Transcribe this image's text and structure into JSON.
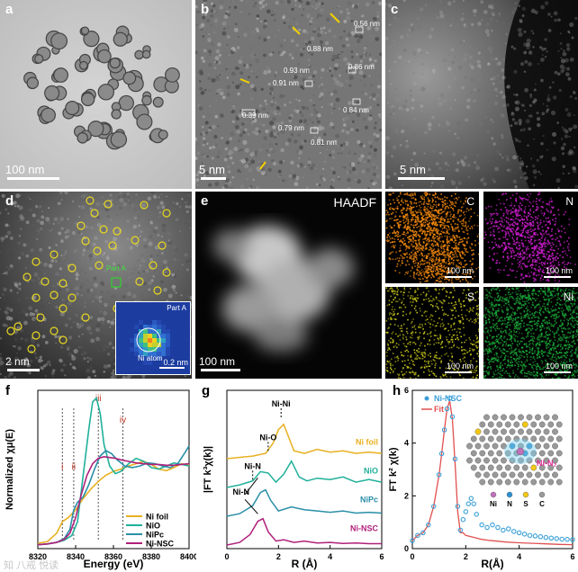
{
  "panels": {
    "a": {
      "label": "a",
      "scale": "100 nm"
    },
    "b": {
      "label": "b",
      "scale": "5 nm",
      "measurements": [
        "0.56 nm",
        "0.88 nm",
        "0.93 nm",
        "0.91 nm",
        "0.86 nm",
        "0.39 nm",
        "0.84 nm",
        "0.79 nm",
        "0.81 nm"
      ]
    },
    "c": {
      "label": "c",
      "scale": "5 nm"
    },
    "d": {
      "label": "d",
      "scale": "2 nm",
      "part_label": "Part A",
      "inset_title": "Part A",
      "inset_atom": "Ni atom",
      "inset_scale": "0.2 nm"
    },
    "e": {
      "label": "e",
      "title": "HAADF",
      "scale": "100 nm"
    },
    "maps": [
      {
        "element": "C",
        "scale": "100 nm",
        "color": "#f58a0c"
      },
      {
        "element": "N",
        "scale": "100 nm",
        "color": "#d21ed2"
      },
      {
        "element": "S",
        "scale": "100 nm",
        "color": "#c8c81a"
      },
      {
        "element": "Ni",
        "scale": "100 nm",
        "color": "#1aa838"
      }
    ],
    "f": {
      "label": "f"
    },
    "g": {
      "label": "g"
    },
    "h": {
      "label": "h"
    }
  },
  "watermark": "知 八戒 悦读",
  "chart_data": [
    {
      "type": "line",
      "panel": "f",
      "xlabel": "Energy (eV)",
      "ylabel": "Normalized χμ(E)",
      "xlim": [
        8320,
        8400
      ],
      "xticks": [
        8320,
        8340,
        8360,
        8380,
        8400
      ],
      "markers": [
        {
          "label": "i",
          "x": 8333
        },
        {
          "label": "ii",
          "x": 8339
        },
        {
          "label": "iii",
          "x": 8352
        },
        {
          "label": "iv",
          "x": 8365
        }
      ],
      "legend": "bottom-right",
      "series": [
        {
          "name": "Ni foil",
          "color": "#e8b020",
          "x": [
            8320,
            8325,
            8330,
            8333,
            8336,
            8340,
            8344,
            8348,
            8352,
            8356,
            8360,
            8364,
            8368,
            8372,
            8376,
            8380,
            8384,
            8388,
            8392,
            8396,
            8400
          ],
          "y": [
            0.02,
            0.04,
            0.15,
            0.3,
            0.35,
            0.45,
            0.6,
            0.72,
            0.82,
            0.9,
            0.95,
            0.98,
            1.02,
            1.05,
            1.08,
            1.04,
            0.98,
            0.96,
            1.0,
            1.05,
            1.03
          ]
        },
        {
          "name": "NiO",
          "color": "#20b09a",
          "x": [
            8320,
            8325,
            8330,
            8334,
            8338,
            8341,
            8344,
            8347,
            8349,
            8351,
            8353,
            8355,
            8358,
            8361,
            8364,
            8368,
            8372,
            8376,
            8380,
            8384,
            8388,
            8392,
            8396,
            8400
          ],
          "y": [
            0.0,
            0.01,
            0.03,
            0.06,
            0.12,
            0.3,
            0.9,
            1.5,
            1.85,
            1.9,
            1.7,
            1.3,
            1.02,
            0.92,
            0.95,
            1.05,
            1.12,
            1.08,
            1.0,
            0.98,
            1.02,
            1.06,
            1.04,
            1.02
          ]
        },
        {
          "name": "NiPc",
          "color": "#2a8fa8",
          "x": [
            8320,
            8325,
            8330,
            8334,
            8337,
            8339,
            8341,
            8344,
            8347,
            8350,
            8353,
            8356,
            8359,
            8362,
            8366,
            8370,
            8374,
            8378,
            8382,
            8386,
            8390,
            8394,
            8398,
            8400
          ],
          "y": [
            0.0,
            0.01,
            0.03,
            0.08,
            0.2,
            0.45,
            0.55,
            0.62,
            0.78,
            0.98,
            1.15,
            1.22,
            1.18,
            1.1,
            1.02,
            1.0,
            1.02,
            1.06,
            1.05,
            1.02,
            1.0,
            1.05,
            1.2,
            1.28
          ]
        },
        {
          "name": "Ni-NSC",
          "color": "#b0207a",
          "x": [
            8320,
            8325,
            8330,
            8334,
            8337,
            8340,
            8343,
            8346,
            8349,
            8352,
            8355,
            8358,
            8361,
            8364,
            8368,
            8372,
            8376,
            8380,
            8384,
            8388,
            8392,
            8396,
            8400
          ],
          "y": [
            0.0,
            0.01,
            0.03,
            0.07,
            0.15,
            0.35,
            0.65,
            0.9,
            1.05,
            1.12,
            1.14,
            1.13,
            1.12,
            1.1,
            1.08,
            1.06,
            1.05,
            1.04,
            1.04,
            1.03,
            1.03,
            1.04,
            1.05
          ]
        }
      ]
    },
    {
      "type": "line",
      "panel": "g",
      "xlabel": "R (Å)",
      "ylabel": "|FT k³χ(k)|",
      "xlim": [
        0,
        6
      ],
      "xticks": [
        0,
        2,
        4,
        6
      ],
      "annotations": [
        "Ni-Ni",
        "Ni-O",
        "Ni-N",
        "Ni-N"
      ],
      "series": [
        {
          "name": "Ni foil",
          "color": "#e8b020",
          "x": [
            0,
            0.5,
            1.0,
            1.5,
            1.8,
            2.0,
            2.2,
            2.4,
            2.6,
            3.0,
            3.5,
            4.0,
            4.5,
            5.0,
            5.5,
            6.0
          ],
          "y": [
            0.0,
            0.05,
            0.1,
            0.2,
            0.6,
            1.1,
            1.3,
            0.8,
            0.3,
            0.2,
            0.35,
            0.25,
            0.3,
            0.2,
            0.25,
            0.2
          ]
        },
        {
          "name": "NiO",
          "color": "#20b09a",
          "x": [
            0,
            0.5,
            1.0,
            1.3,
            1.6,
            1.9,
            2.2,
            2.5,
            2.8,
            3.1,
            3.5,
            4.0,
            4.5,
            5.0,
            5.5,
            6.0
          ],
          "y": [
            0.0,
            0.1,
            0.25,
            0.6,
            0.55,
            0.2,
            0.5,
            1.0,
            0.4,
            0.25,
            0.35,
            0.3,
            0.4,
            0.2,
            0.3,
            0.2
          ]
        },
        {
          "name": "NiPc",
          "color": "#2a8fa8",
          "x": [
            0,
            0.5,
            1.0,
            1.3,
            1.5,
            1.7,
            2.0,
            2.5,
            3.0,
            3.5,
            4.0,
            4.5,
            5.0,
            5.5,
            6.0
          ],
          "y": [
            0.0,
            0.1,
            0.4,
            0.9,
            1.0,
            0.6,
            0.2,
            0.35,
            0.25,
            0.2,
            0.15,
            0.2,
            0.12,
            0.15,
            0.12
          ]
        },
        {
          "name": "Ni-NSC",
          "color": "#b0207a",
          "x": [
            0,
            0.5,
            0.9,
            1.2,
            1.4,
            1.6,
            1.9,
            2.2,
            2.6,
            3.0,
            3.5,
            4.0,
            4.5,
            5.0,
            5.5,
            6.0
          ],
          "y": [
            0.0,
            0.1,
            0.4,
            0.9,
            1.0,
            0.5,
            0.15,
            0.2,
            0.1,
            0.15,
            0.08,
            0.1,
            0.06,
            0.08,
            0.05,
            0.05
          ]
        }
      ],
      "offsets": [
        1.8,
        1.2,
        0.6,
        0.0
      ]
    },
    {
      "type": "line",
      "panel": "h",
      "xlabel": "R(Å)",
      "ylabel": "FT k² χ(k)",
      "xlim": [
        0,
        6
      ],
      "ylim": [
        0,
        6
      ],
      "xticks": [
        0,
        2,
        4,
        6
      ],
      "yticks": [
        0,
        2,
        4,
        6
      ],
      "legend": "top-left",
      "inset_labels": [
        "Ni-N₂",
        "Ni",
        "N",
        "S",
        "C"
      ],
      "series": [
        {
          "name": "Ni-NSC",
          "color": "#3a9fd8",
          "style": "markers",
          "x": [
            0,
            0.2,
            0.4,
            0.6,
            0.8,
            1.0,
            1.1,
            1.2,
            1.3,
            1.4,
            1.5,
            1.6,
            1.7,
            1.8,
            1.9,
            2.0,
            2.1,
            2.2,
            2.3,
            2.4,
            2.6,
            2.8,
            3.0,
            3.2,
            3.4,
            3.6,
            3.8,
            4.0,
            4.2,
            4.4,
            4.6,
            4.8,
            5.0,
            5.2,
            5.4,
            5.6,
            5.8,
            6.0
          ],
          "y": [
            0.3,
            0.5,
            0.6,
            0.9,
            1.6,
            2.8,
            3.6,
            4.5,
            5.3,
            5.7,
            5.0,
            3.4,
            1.6,
            0.7,
            1.1,
            1.4,
            1.7,
            1.9,
            1.7,
            1.3,
            0.9,
            0.8,
            0.9,
            0.8,
            0.7,
            0.75,
            0.65,
            0.6,
            0.55,
            0.5,
            0.48,
            0.45,
            0.42,
            0.4,
            0.38,
            0.36,
            0.35,
            0.34
          ]
        },
        {
          "name": "Fit",
          "color": "#e05050",
          "style": "line",
          "x": [
            0,
            0.2,
            0.4,
            0.6,
            0.8,
            1.0,
            1.1,
            1.2,
            1.3,
            1.4,
            1.5,
            1.6,
            1.7,
            1.8,
            1.9,
            2.0,
            2.2,
            2.4,
            2.6,
            2.8,
            3.0,
            3.5,
            4.0,
            4.5,
            5.0,
            5.5,
            6.0
          ],
          "y": [
            0.3,
            0.5,
            0.6,
            0.9,
            1.6,
            2.8,
            3.6,
            4.5,
            5.3,
            5.6,
            4.9,
            3.2,
            1.4,
            0.6,
            0.6,
            0.5,
            0.45,
            0.4,
            0.35,
            0.32,
            0.3,
            0.25,
            0.22,
            0.2,
            0.18,
            0.16,
            0.15
          ]
        }
      ]
    }
  ]
}
